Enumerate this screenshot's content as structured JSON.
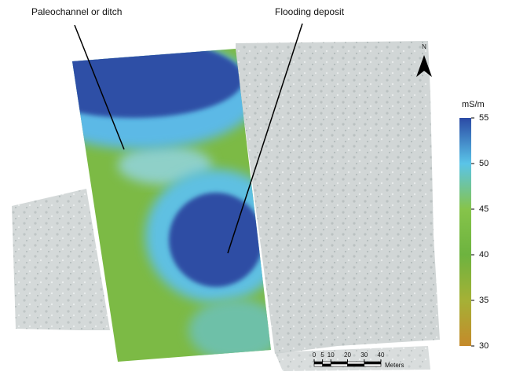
{
  "annotations": [
    "Paleochannel or ditch",
    "Flooding deposit"
  ],
  "north_label": "N",
  "colorbar": {
    "title": "mS/m",
    "ticks": [
      55,
      50,
      45,
      40,
      35,
      30
    ]
  },
  "scale_bar": {
    "ticks": [
      0,
      5,
      10,
      20,
      30,
      40
    ],
    "unit": "Meters"
  }
}
